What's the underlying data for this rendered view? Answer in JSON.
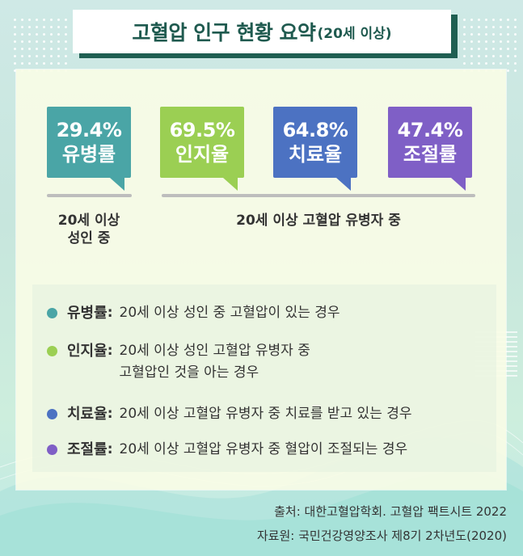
{
  "title": {
    "main": "고혈압 인구 현황 요약",
    "sub": "(20세 이상)"
  },
  "stats": [
    {
      "pct": "29.4%",
      "label": "유병률",
      "color": "#4aa5a6"
    },
    {
      "pct": "69.5%",
      "label": "인지율",
      "color": "#9bcf53"
    },
    {
      "pct": "64.8%",
      "label": "치료율",
      "color": "#4c72c2"
    },
    {
      "pct": "47.4%",
      "label": "조절률",
      "color": "#7f5fc6"
    }
  ],
  "group_labels": {
    "left_line1": "20세 이상",
    "left_line2": "성인 중",
    "right": "20세 이상 고혈압 유병자 중"
  },
  "definitions": [
    {
      "term": "유병률",
      "desc": [
        "20세 이상 성인 중 고혈압이 있는 경우"
      ],
      "color": "#4aa5a6"
    },
    {
      "term": "인지율",
      "desc": [
        "20세 이상 성인 고혈압 유병자 중",
        "고혈압인 것을 아는 경우"
      ],
      "color": "#9bcf53"
    },
    {
      "term": "치료율",
      "desc": [
        "20세 이상 고혈압 유병자 중 치료를 받고 있는 경우"
      ],
      "color": "#4c72c2"
    },
    {
      "term": "조절률",
      "desc": [
        "20세 이상 고혈압 유병자 중 혈압이 조절되는 경우"
      ],
      "color": "#7f5fc6"
    }
  ],
  "colon": ":",
  "source": {
    "line1": "출처: 대한고혈압학회. 고혈압 팩트시트 2022",
    "line2": "자료원: 국민건강영양조사 제8기 2차년도(2020)"
  }
}
